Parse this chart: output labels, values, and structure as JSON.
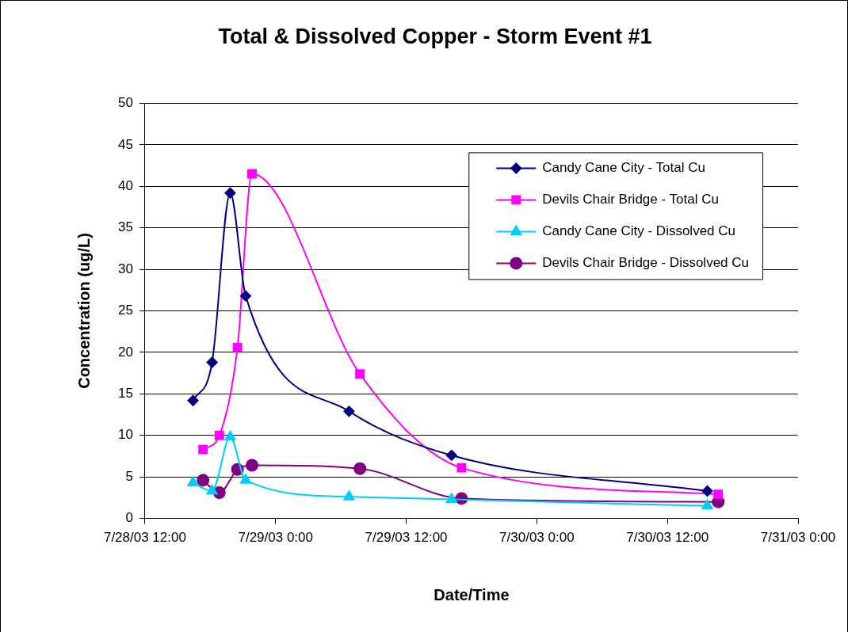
{
  "chart_data": {
    "type": "line",
    "title": "Total & Dissolved Copper - Storm Event #1",
    "xlabel": "Date/Time",
    "ylabel": "Concentration (ug/L)",
    "xlim": [
      "--07-28T12:00",
      "--07-31T00:00"
    ],
    "xticks": [
      {
        "value": "--07-28T12:00",
        "label": "7/28/03 12:00"
      },
      {
        "value": "--07-29T00:00",
        "label": "7/29/03 0:00"
      },
      {
        "value": "--07-29T12:00",
        "label": "7/29/03 12:00"
      },
      {
        "value": "--07-30T00:00",
        "label": "7/30/03 0:00"
      },
      {
        "value": "--07-30T12:00",
        "label": "7/30/03 12:00"
      },
      {
        "value": "--07-31T00:00",
        "label": "7/31/03 0:00"
      }
    ],
    "ylim": [
      0,
      50
    ],
    "yticks": [
      0,
      5,
      10,
      15,
      20,
      25,
      30,
      35,
      40,
      45,
      50
    ],
    "grid": "y",
    "legend": "top right",
    "series": [
      {
        "name": "Candy Cane City - Total Cu",
        "color": "#000080",
        "marker": "diamond",
        "x": [
          "--07-28T16:25",
          "--07-28T18:10",
          "--07-28T19:50",
          "--07-28T21:15",
          "--07-29T06:45",
          "--07-29T16:10",
          "--07-30T15:40"
        ],
        "values": [
          14.2,
          18.8,
          39.2,
          26.8,
          12.9,
          7.6,
          3.3
        ]
      },
      {
        "name": "Devils Chair Bridge - Total Cu",
        "color": "#ff00ff",
        "marker": "square",
        "x": [
          "--07-28T17:20",
          "--07-28T18:50",
          "--07-28T20:30",
          "--07-28T21:50",
          "--07-29T07:45",
          "--07-29T17:05",
          "--07-30T16:40"
        ],
        "values": [
          8.3,
          10.0,
          20.6,
          41.5,
          17.4,
          6.1,
          2.9
        ]
      },
      {
        "name": "Candy Cane City - Dissolved Cu",
        "color": "#00ccff",
        "marker": "triangle",
        "x": [
          "--07-28T16:25",
          "--07-28T18:10",
          "--07-28T19:50",
          "--07-28T21:15",
          "--07-29T06:45",
          "--07-29T16:10",
          "--07-30T15:40"
        ],
        "values": [
          4.3,
          3.3,
          9.8,
          4.6,
          2.6,
          2.3,
          1.5
        ]
      },
      {
        "name": "Devils Chair Bridge - Dissolved Cu",
        "color": "#800080",
        "marker": "circle",
        "x": [
          "--07-28T17:20",
          "--07-28T18:50",
          "--07-28T20:30",
          "--07-28T21:50",
          "--07-29T07:45",
          "--07-29T17:05",
          "--07-30T16:40"
        ],
        "values": [
          4.6,
          3.1,
          5.9,
          6.4,
          6.0,
          2.4,
          2.0
        ]
      }
    ]
  }
}
